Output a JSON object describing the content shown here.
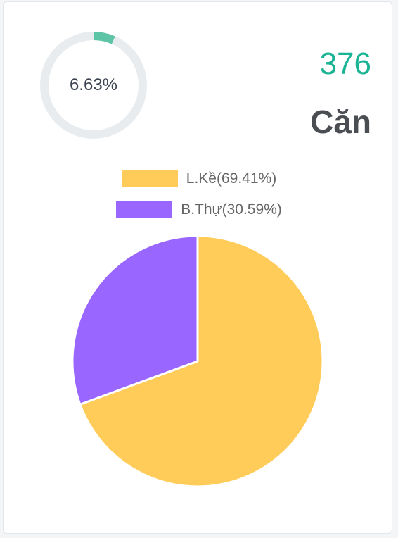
{
  "progress": {
    "label": "6.63%",
    "value": 6.63,
    "track_color": "#e8ecef",
    "fill_color": "#5ec4a6"
  },
  "stat": {
    "count": "376",
    "unit": "Căn",
    "count_color": "#1ab394"
  },
  "chart_data": {
    "type": "pie",
    "categories": [
      "L.Kề",
      "B.Thự"
    ],
    "values": [
      69.41,
      30.59
    ],
    "labels": [
      "L.Kề(69.41%)",
      "B.Thự(30.59%)"
    ],
    "colors": [
      "#ffcc59",
      "#9966ff"
    ],
    "legend": "top"
  }
}
